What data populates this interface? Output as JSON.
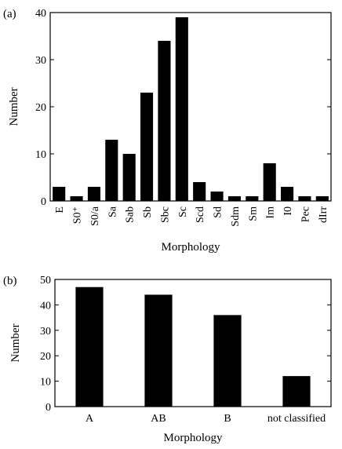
{
  "chart_data": [
    {
      "type": "bar",
      "panel_label": "(a)",
      "categories": [
        "E",
        "S0⁺",
        "S0/a",
        "Sa",
        "Sab",
        "Sb",
        "Sbc",
        "Sc",
        "Scd",
        "Sd",
        "Sdm",
        "Sm",
        "Im",
        "I0",
        "Pec",
        "dIrr"
      ],
      "values": [
        3,
        1,
        3,
        13,
        10,
        23,
        34,
        39,
        4,
        2,
        1,
        1,
        8,
        3,
        1,
        1
      ],
      "xlabel": "Morphology",
      "ylabel": "Number",
      "ylim": [
        0,
        40
      ],
      "yticks": [
        0,
        10,
        20,
        30,
        40
      ],
      "grid": false
    },
    {
      "type": "bar",
      "panel_label": "(b)",
      "categories": [
        "A",
        "AB",
        "B",
        "not classified"
      ],
      "values": [
        47,
        44,
        36,
        12
      ],
      "xlabel": "Morphology",
      "ylabel": "Number",
      "ylim": [
        0,
        50
      ],
      "yticks": [
        0,
        10,
        20,
        30,
        40,
        50
      ],
      "grid": false
    }
  ]
}
